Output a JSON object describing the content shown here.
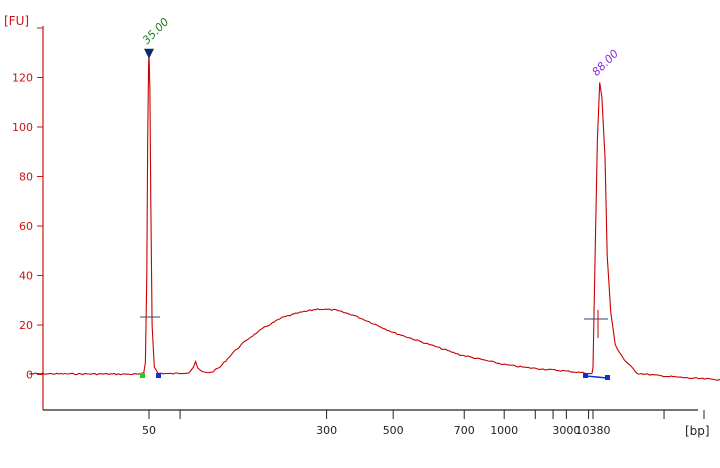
{
  "chart_data": {
    "type": "line",
    "title": "",
    "ylabel": "[FU]",
    "xlabel": "[bp]",
    "ylim": [
      -15,
      140
    ],
    "grid": false,
    "colors": {
      "trace": "#c80000",
      "axis_y": "#c81414",
      "axis_x": "#222222",
      "marker_lower": "#0a2a6e",
      "peak_lower_label": "#1f7a1f",
      "peak_upper_label": "#8a2be2",
      "region_start": "#22cc22",
      "region_point": "#1030d0",
      "baseline_mark": "#2a4a7a"
    },
    "yticks": [
      0,
      20,
      40,
      60,
      80,
      100,
      120
    ],
    "x_axis_ticks": [
      {
        "label": "50",
        "t": 0.0
      },
      {
        "label": "",
        "t": 0.07
      },
      {
        "label": "300",
        "t": 0.4
      },
      {
        "label": "500",
        "t": 0.55
      },
      {
        "label": "700",
        "t": 0.71
      },
      {
        "label": "1000",
        "t": 0.8
      },
      {
        "label": "",
        "t": 0.87
      },
      {
        "label": "",
        "t": 0.91
      },
      {
        "label": "3000",
        "t": 0.94
      },
      {
        "label": "",
        "t": 0.99
      }
    ],
    "x_tail_ticks": [
      {
        "label": "10380",
        "t": 1.0
      },
      {
        "label": "",
        "t": 1.16
      },
      {
        "label": "",
        "t": 1.25
      }
    ],
    "series": [
      {
        "points": [
          [
            -0.27,
            0.3
          ],
          [
            -0.1,
            0.2
          ],
          [
            -0.02,
            0.1
          ],
          [
            -0.012,
            0.5
          ],
          [
            -0.008,
            5
          ],
          [
            -0.005,
            40
          ],
          [
            -0.003,
            95
          ],
          [
            -0.001,
            125
          ],
          [
            0.0,
            130
          ],
          [
            0.002,
            115
          ],
          [
            0.004,
            70
          ],
          [
            0.007,
            20
          ],
          [
            0.012,
            3
          ],
          [
            0.02,
            0.5
          ],
          [
            0.05,
            0.3
          ],
          [
            0.09,
            0.8
          ],
          [
            0.1,
            3
          ],
          [
            0.105,
            5
          ],
          [
            0.11,
            2.5
          ],
          [
            0.12,
            1
          ],
          [
            0.14,
            0.8
          ],
          [
            0.16,
            3
          ],
          [
            0.19,
            9
          ],
          [
            0.22,
            14
          ],
          [
            0.26,
            19
          ],
          [
            0.3,
            23
          ],
          [
            0.34,
            25
          ],
          [
            0.38,
            26.5
          ],
          [
            0.42,
            26
          ],
          [
            0.46,
            24
          ],
          [
            0.5,
            21
          ],
          [
            0.55,
            17
          ],
          [
            0.6,
            14
          ],
          [
            0.65,
            11
          ],
          [
            0.7,
            8
          ],
          [
            0.75,
            6
          ],
          [
            0.8,
            4
          ],
          [
            0.85,
            2.8
          ],
          [
            0.9,
            2
          ],
          [
            0.95,
            1.2
          ],
          [
            0.99,
            0.5
          ],
          [
            0.995,
            0.2
          ],
          [
            0.998,
            0.5
          ],
          [
            1.0,
            3
          ],
          [
            1.005,
            50
          ],
          [
            1.01,
            95
          ],
          [
            1.015,
            118
          ],
          [
            1.02,
            112
          ],
          [
            1.027,
            88
          ],
          [
            1.032,
            48
          ],
          [
            1.04,
            25
          ],
          [
            1.05,
            12
          ],
          [
            1.07,
            6
          ],
          [
            1.1,
            0.5
          ],
          [
            1.15,
            -0.5
          ],
          [
            1.22,
            -1.5
          ],
          [
            1.3,
            -2.2
          ]
        ]
      }
    ],
    "annotations": [
      {
        "label": "35.00",
        "t": 0.0,
        "y": 130
      },
      {
        "label": "88.00",
        "t": 1.015,
        "y": 118
      }
    ]
  }
}
